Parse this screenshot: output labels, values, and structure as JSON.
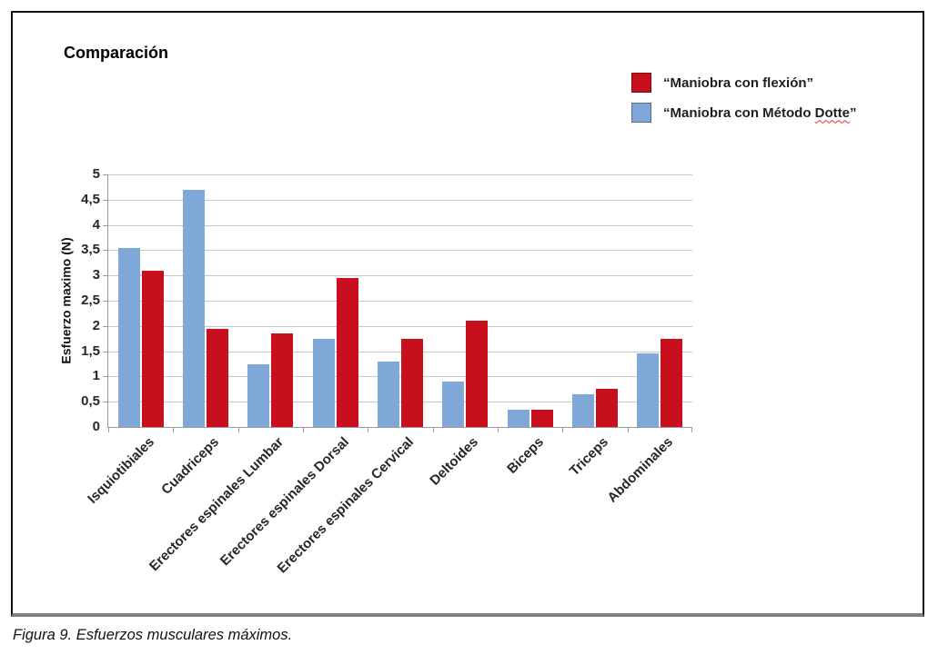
{
  "figure": {
    "caption": "Figura 9. Esfuerzos musculares máximos."
  },
  "legend": {
    "items": [
      {
        "label": "“Maniobra con flexión”",
        "color": "#c80f1e"
      },
      {
        "label_prefix": "“Maniobra con Método ",
        "label_word": "Dotte",
        "label_suffix": "”",
        "color": "#7fa7d8"
      }
    ]
  },
  "chart_data": {
    "type": "bar",
    "title": "Comparación",
    "xlabel": "",
    "ylabel": "Esfuerzo maximo (N)",
    "ylim": [
      0,
      5
    ],
    "ytick_step": 0.5,
    "ytick_labels": [
      "0",
      "0,5",
      "1",
      "1,5",
      "2",
      "2,5",
      "3",
      "3,5",
      "4",
      "4,5",
      "5"
    ],
    "grid": "horizontal",
    "legend_position": "top-right",
    "categories": [
      "Isquiotibiales",
      "Cuadriceps",
      "Erectores espinales Lumbar",
      "Erectores espinales Dorsal",
      "Erectores espinales Cervical",
      "Deltoides",
      "Biceps",
      "Triceps",
      "Abdominales"
    ],
    "series": [
      {
        "name": "“Maniobra con flexión”",
        "color": "#c80f1e",
        "values": [
          3.1,
          1.95,
          1.85,
          2.95,
          1.75,
          2.1,
          0.35,
          0.75,
          1.75
        ]
      },
      {
        "name": "“Maniobra con Método Dotte”",
        "color": "#7fa7d8",
        "values": [
          3.55,
          4.7,
          1.25,
          1.75,
          1.3,
          0.9,
          0.35,
          0.65,
          1.45
        ]
      }
    ],
    "bar_draw_order_left_to_right": [
      1,
      0
    ]
  },
  "colors": {
    "gridline": "#c8c8c8",
    "axis": "#9b9b9b",
    "tick_text": "#262626"
  }
}
